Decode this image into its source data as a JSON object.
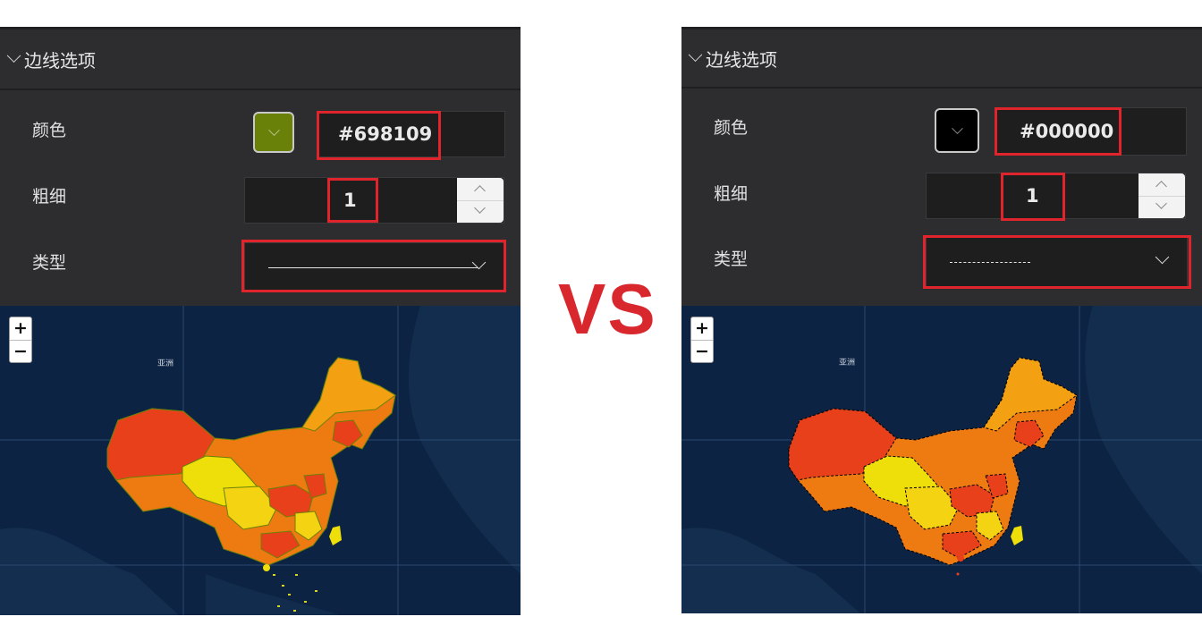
{
  "left": {
    "section_title": "边线选项",
    "color_label": "颜色",
    "color_value": "#698109",
    "width_label": "粗细",
    "width_value": "1",
    "type_label": "类型",
    "line_type": "solid",
    "map_label": "亚洲",
    "zoom_in": "+",
    "zoom_out": "−"
  },
  "right": {
    "section_title": "边线选项",
    "color_label": "颜色",
    "color_value": "#000000",
    "width_label": "粗细",
    "width_value": "1",
    "type_label": "类型",
    "line_type": "dashed",
    "map_label": "亚洲",
    "zoom_in": "+",
    "zoom_out": "−"
  },
  "vs_text": "VS",
  "colors": {
    "panel_bg": "#2d2d30",
    "highlight": "#e0242b",
    "map_bg": "#0d2343",
    "choropleth": [
      "#e8401a",
      "#ee7b12",
      "#f3a112",
      "#f4d312",
      "#eede0a"
    ]
  }
}
